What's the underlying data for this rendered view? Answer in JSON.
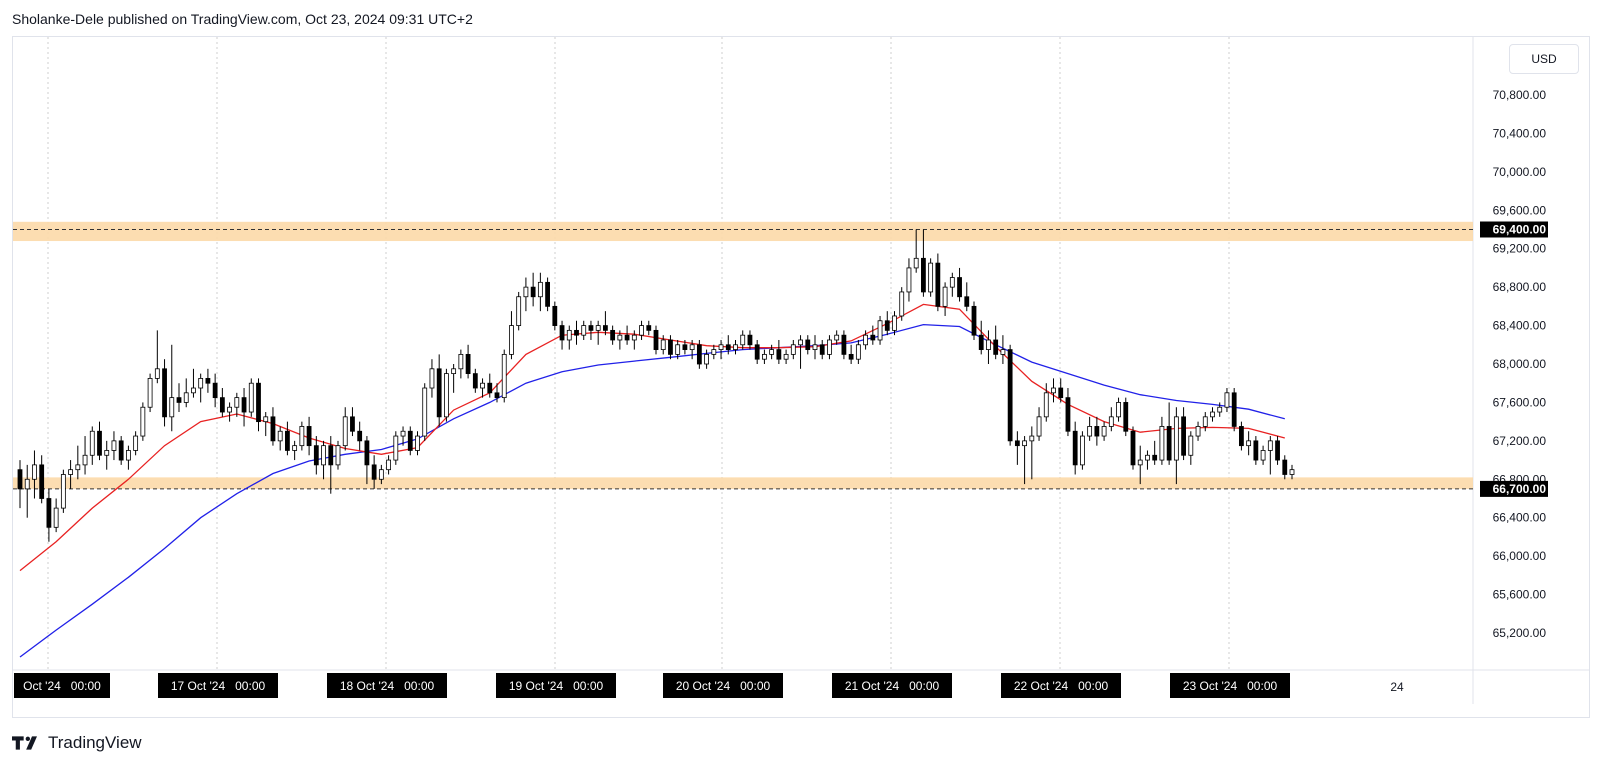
{
  "header": {
    "text": "Sholanke-Dele published on TradingView.com, Oct 23, 2024 09:31 UTC+2"
  },
  "currency": {
    "label": "USD"
  },
  "footer": {
    "brand": "TradingView",
    "logo_icon": "tradingview-logo-icon"
  },
  "colors": {
    "up_candle": "#ffffff",
    "down_candle": "#000000",
    "wick": "#000000",
    "ma_fast": "#e82222",
    "ma_slow": "#2121e8",
    "zone_fill": "#fcd9a8",
    "zone_line": "#333333",
    "grid": "#cfcfcf",
    "axis_text": "#131722"
  },
  "chart_data": {
    "type": "candlestick",
    "symbol_currency": "USD",
    "y_ticks": [
      65200,
      65600,
      66000,
      66400,
      66800,
      67200,
      67600,
      68000,
      68400,
      68800,
      69200,
      69600,
      70000,
      70400,
      70800
    ],
    "y_tick_labels": [
      "65,200.00",
      "65,600.00",
      "66,000.00",
      "66,400.00",
      "66,800.00",
      "67,200.00",
      "67,600.00",
      "68,000.00",
      "68,400.00",
      "68,800.00",
      "69,200.00",
      "69,600.00",
      "70,000.00",
      "70,400.00",
      "70,800.00"
    ],
    "x_labels": [
      "Oct '24   00:00",
      "17 Oct '24   00:00",
      "18 Oct '24   00:00",
      "19 Oct '24   00:00",
      "20 Oct '24   00:00",
      "21 Oct '24   00:00",
      "22 Oct '24   00:00",
      "23 Oct '24   00:00",
      "24"
    ],
    "levels": [
      {
        "price": 69400,
        "label": "69,400.00",
        "zone": [
          69280,
          69480
        ]
      },
      {
        "price": 66700,
        "label": "66,700.00",
        "zone": [
          66700,
          66820
        ]
      }
    ],
    "candles": [
      [
        66900,
        67000,
        66500,
        66700
      ],
      [
        66700,
        66950,
        66400,
        66800
      ],
      [
        66800,
        67100,
        66600,
        66950
      ],
      [
        66950,
        67050,
        66550,
        66600
      ],
      [
        66600,
        66700,
        66150,
        66300
      ],
      [
        66300,
        66600,
        66250,
        66500
      ],
      [
        66500,
        66900,
        66450,
        66850
      ],
      [
        66850,
        67000,
        66700,
        66900
      ],
      [
        66900,
        67150,
        66800,
        66950
      ],
      [
        66950,
        67250,
        66850,
        67050
      ],
      [
        67050,
        67350,
        66950,
        67300
      ],
      [
        67300,
        67400,
        67000,
        67050
      ],
      [
        67050,
        67200,
        66900,
        67100
      ],
      [
        67100,
        67300,
        67000,
        67200
      ],
      [
        67200,
        67250,
        66950,
        67000
      ],
      [
        67000,
        67150,
        66900,
        67100
      ],
      [
        67100,
        67300,
        67050,
        67250
      ],
      [
        67250,
        67600,
        67200,
        67550
      ],
      [
        67550,
        67900,
        67500,
        67850
      ],
      [
        67850,
        68350,
        67800,
        67950
      ],
      [
        67950,
        68050,
        67350,
        67450
      ],
      [
        67450,
        68200,
        67300,
        67650
      ],
      [
        67650,
        67800,
        67500,
        67600
      ],
      [
        67600,
        67850,
        67550,
        67700
      ],
      [
        67700,
        67950,
        67650,
        67750
      ],
      [
        67750,
        67900,
        67600,
        67850
      ],
      [
        67850,
        67950,
        67700,
        67800
      ],
      [
        67800,
        67900,
        67550,
        67650
      ],
      [
        67650,
        67750,
        67450,
        67500
      ],
      [
        67500,
        67600,
        67400,
        67550
      ],
      [
        67550,
        67700,
        67450,
        67650
      ],
      [
        67650,
        67750,
        67350,
        67500
      ],
      [
        67500,
        67850,
        67450,
        67800
      ],
      [
        67800,
        67850,
        67300,
        67400
      ],
      [
        67400,
        67500,
        67250,
        67450
      ],
      [
        67450,
        67550,
        67150,
        67200
      ],
      [
        67200,
        67350,
        67100,
        67300
      ],
      [
        67300,
        67400,
        67050,
        67100
      ],
      [
        67100,
        67200,
        67000,
        67150
      ],
      [
        67150,
        67400,
        67100,
        67350
      ],
      [
        67350,
        67450,
        67050,
        67150
      ],
      [
        67150,
        67250,
        66850,
        66950
      ],
      [
        66950,
        67200,
        66800,
        67150
      ],
      [
        67150,
        67250,
        66650,
        66950
      ],
      [
        66950,
        67200,
        66900,
        67150
      ],
      [
        67150,
        67550,
        67100,
        67450
      ],
      [
        67450,
        67550,
        67250,
        67300
      ],
      [
        67300,
        67400,
        67100,
        67200
      ],
      [
        67200,
        67250,
        66750,
        66950
      ],
      [
        66950,
        67050,
        66700,
        66800
      ],
      [
        66800,
        66950,
        66750,
        66900
      ],
      [
        66900,
        67050,
        66850,
        67000
      ],
      [
        67000,
        67300,
        66950,
        67250
      ],
      [
        67250,
        67350,
        67150,
        67300
      ],
      [
        67300,
        67350,
        67050,
        67100
      ],
      [
        67100,
        67300,
        67050,
        67250
      ],
      [
        67250,
        67800,
        67200,
        67750
      ],
      [
        67750,
        68050,
        67650,
        67950
      ],
      [
        67950,
        68100,
        67350,
        67450
      ],
      [
        67450,
        67950,
        67400,
        67900
      ],
      [
        67900,
        68000,
        67700,
        67950
      ],
      [
        67950,
        68150,
        67850,
        68100
      ],
      [
        68100,
        68200,
        67850,
        67900
      ],
      [
        67900,
        67950,
        67700,
        67750
      ],
      [
        67750,
        67850,
        67650,
        67800
      ],
      [
        67800,
        67900,
        67650,
        67700
      ],
      [
        67700,
        67800,
        67600,
        67650
      ],
      [
        67650,
        68150,
        67600,
        68100
      ],
      [
        68100,
        68550,
        68050,
        68400
      ],
      [
        68400,
        68750,
        68350,
        68700
      ],
      [
        68700,
        68900,
        68550,
        68800
      ],
      [
        68800,
        68950,
        68600,
        68700
      ],
      [
        68700,
        68950,
        68550,
        68850
      ],
      [
        68850,
        68900,
        68550,
        68600
      ],
      [
        68600,
        68650,
        68350,
        68400
      ],
      [
        68400,
        68450,
        68150,
        68250
      ],
      [
        68250,
        68400,
        68150,
        68350
      ],
      [
        68350,
        68450,
        68200,
        68300
      ],
      [
        68300,
        68450,
        68250,
        68400
      ],
      [
        68400,
        68450,
        68250,
        68350
      ],
      [
        68350,
        68450,
        68200,
        68400
      ],
      [
        68400,
        68550,
        68300,
        68350
      ],
      [
        68350,
        68400,
        68200,
        68250
      ],
      [
        68250,
        68350,
        68150,
        68300
      ],
      [
        68300,
        68400,
        68200,
        68250
      ],
      [
        68250,
        68350,
        68150,
        68300
      ],
      [
        68300,
        68450,
        68250,
        68400
      ],
      [
        68400,
        68450,
        68300,
        68350
      ],
      [
        68350,
        68400,
        68100,
        68150
      ],
      [
        68150,
        68300,
        68100,
        68250
      ],
      [
        68250,
        68300,
        68050,
        68100
      ],
      [
        68100,
        68250,
        68050,
        68200
      ],
      [
        68200,
        68250,
        68100,
        68150
      ],
      [
        68150,
        68250,
        68050,
        68200
      ],
      [
        68200,
        68250,
        67950,
        68000
      ],
      [
        68000,
        68150,
        67950,
        68100
      ],
      [
        68100,
        68200,
        68050,
        68150
      ],
      [
        68150,
        68250,
        68050,
        68200
      ],
      [
        68200,
        68300,
        68100,
        68150
      ],
      [
        68150,
        68250,
        68100,
        68200
      ],
      [
        68200,
        68350,
        68150,
        68300
      ],
      [
        68300,
        68350,
        68150,
        68200
      ],
      [
        68200,
        68250,
        68000,
        68050
      ],
      [
        68050,
        68150,
        68000,
        68100
      ],
      [
        68100,
        68200,
        68050,
        68150
      ],
      [
        68150,
        68250,
        68000,
        68050
      ],
      [
        68050,
        68150,
        68000,
        68100
      ],
      [
        68100,
        68250,
        68050,
        68200
      ],
      [
        68200,
        68300,
        67950,
        68250
      ],
      [
        68250,
        68300,
        68100,
        68150
      ],
      [
        68150,
        68300,
        68050,
        68200
      ],
      [
        68200,
        68250,
        68050,
        68100
      ],
      [
        68100,
        68300,
        68050,
        68250
      ],
      [
        68250,
        68350,
        68200,
        68300
      ],
      [
        68300,
        68350,
        68050,
        68100
      ],
      [
        68100,
        68200,
        68000,
        68050
      ],
      [
        68050,
        68250,
        68000,
        68200
      ],
      [
        68200,
        68350,
        68150,
        68300
      ],
      [
        68300,
        68400,
        68200,
        68250
      ],
      [
        68250,
        68500,
        68200,
        68450
      ],
      [
        68450,
        68550,
        68300,
        68350
      ],
      [
        68350,
        68550,
        68300,
        68500
      ],
      [
        68500,
        68800,
        68450,
        68750
      ],
      [
        68750,
        69100,
        68650,
        69000
      ],
      [
        69000,
        69400,
        68950,
        69100
      ],
      [
        69100,
        69400,
        68700,
        68750
      ],
      [
        68750,
        69100,
        68700,
        69050
      ],
      [
        69050,
        69150,
        68550,
        68600
      ],
      [
        68600,
        68850,
        68500,
        68800
      ],
      [
        68800,
        68950,
        68700,
        68900
      ],
      [
        68900,
        69000,
        68650,
        68700
      ],
      [
        68700,
        68850,
        68550,
        68600
      ],
      [
        68600,
        68650,
        68250,
        68300
      ],
      [
        68300,
        68450,
        68100,
        68150
      ],
      [
        68150,
        68350,
        68000,
        68250
      ],
      [
        68250,
        68400,
        68050,
        68100
      ],
      [
        68100,
        68300,
        68000,
        68150
      ],
      [
        68150,
        68200,
        67150,
        67200
      ],
      [
        67200,
        67300,
        66950,
        67150
      ],
      [
        67150,
        67250,
        66750,
        67200
      ],
      [
        67200,
        67350,
        66800,
        67250
      ],
      [
        67250,
        67550,
        67200,
        67450
      ],
      [
        67450,
        67800,
        67400,
        67700
      ],
      [
        67700,
        67850,
        67600,
        67750
      ],
      [
        67750,
        67850,
        67600,
        67650
      ],
      [
        67650,
        67750,
        67250,
        67300
      ],
      [
        67300,
        67400,
        66850,
        66950
      ],
      [
        66950,
        67300,
        66900,
        67250
      ],
      [
        67250,
        67450,
        67200,
        67350
      ],
      [
        67350,
        67450,
        67150,
        67250
      ],
      [
        67250,
        67400,
        67200,
        67350
      ],
      [
        67350,
        67550,
        67300,
        67450
      ],
      [
        67450,
        67650,
        67400,
        67600
      ],
      [
        67600,
        67650,
        67250,
        67300
      ],
      [
        67300,
        67350,
        66900,
        66950
      ],
      [
        66950,
        67150,
        66750,
        67000
      ],
      [
        67000,
        67100,
        66900,
        67050
      ],
      [
        67050,
        67200,
        66950,
        67000
      ],
      [
        67000,
        67450,
        66950,
        67350
      ],
      [
        67350,
        67600,
        66950,
        67000
      ],
      [
        67000,
        67550,
        66750,
        67450
      ],
      [
        67450,
        67550,
        67000,
        67050
      ],
      [
        67050,
        67300,
        66950,
        67250
      ],
      [
        67250,
        67400,
        67200,
        67350
      ],
      [
        67350,
        67500,
        67300,
        67450
      ],
      [
        67450,
        67550,
        67400,
        67500
      ],
      [
        67500,
        67600,
        67450,
        67550
      ],
      [
        67550,
        67750,
        67500,
        67700
      ],
      [
        67700,
        67750,
        67300,
        67350
      ],
      [
        67350,
        67400,
        67100,
        67150
      ],
      [
        67150,
        67300,
        67050,
        67200
      ],
      [
        67200,
        67250,
        66950,
        67000
      ],
      [
        67000,
        67150,
        66950,
        67100
      ],
      [
        67100,
        67250,
        66850,
        67200
      ],
      [
        67200,
        67250,
        66950,
        67000
      ],
      [
        67000,
        67050,
        66800,
        66850
      ],
      [
        66850,
        66950,
        66800,
        66900
      ]
    ],
    "ma_fast": [
      [
        0,
        65850
      ],
      [
        5,
        66150
      ],
      [
        10,
        66500
      ],
      [
        15,
        66800
      ],
      [
        20,
        67150
      ],
      [
        25,
        67400
      ],
      [
        30,
        67480
      ],
      [
        35,
        67380
      ],
      [
        40,
        67230
      ],
      [
        45,
        67120
      ],
      [
        50,
        67060
      ],
      [
        55,
        67130
      ],
      [
        60,
        67520
      ],
      [
        65,
        67700
      ],
      [
        70,
        68100
      ],
      [
        75,
        68300
      ],
      [
        80,
        68330
      ],
      [
        85,
        68310
      ],
      [
        90,
        68250
      ],
      [
        95,
        68190
      ],
      [
        100,
        68170
      ],
      [
        105,
        68170
      ],
      [
        110,
        68180
      ],
      [
        115,
        68240
      ],
      [
        120,
        68420
      ],
      [
        125,
        68620
      ],
      [
        130,
        68570
      ],
      [
        135,
        68180
      ],
      [
        140,
        67820
      ],
      [
        145,
        67580
      ],
      [
        150,
        67400
      ],
      [
        155,
        67290
      ],
      [
        160,
        67330
      ],
      [
        165,
        67340
      ],
      [
        170,
        67330
      ],
      [
        175,
        67230
      ]
    ],
    "ma_slow": [
      [
        0,
        64950
      ],
      [
        5,
        65230
      ],
      [
        10,
        65500
      ],
      [
        15,
        65780
      ],
      [
        20,
        66080
      ],
      [
        25,
        66400
      ],
      [
        30,
        66650
      ],
      [
        35,
        66860
      ],
      [
        40,
        66990
      ],
      [
        45,
        67060
      ],
      [
        50,
        67110
      ],
      [
        55,
        67220
      ],
      [
        60,
        67430
      ],
      [
        65,
        67600
      ],
      [
        70,
        67800
      ],
      [
        75,
        67920
      ],
      [
        80,
        67990
      ],
      [
        85,
        68030
      ],
      [
        90,
        68070
      ],
      [
        95,
        68110
      ],
      [
        100,
        68150
      ],
      [
        105,
        68170
      ],
      [
        110,
        68190
      ],
      [
        115,
        68220
      ],
      [
        120,
        68310
      ],
      [
        125,
        68410
      ],
      [
        130,
        68390
      ],
      [
        135,
        68200
      ],
      [
        140,
        68020
      ],
      [
        145,
        67900
      ],
      [
        150,
        67780
      ],
      [
        155,
        67680
      ],
      [
        160,
        67620
      ],
      [
        165,
        67580
      ],
      [
        170,
        67530
      ],
      [
        175,
        67430
      ]
    ]
  }
}
